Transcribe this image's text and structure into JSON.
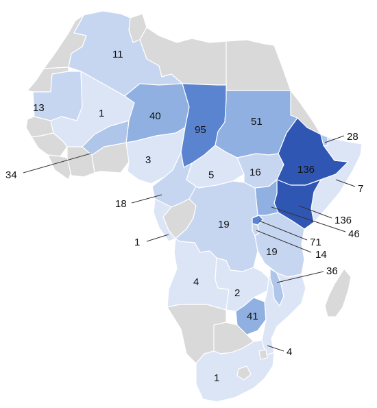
{
  "palette": {
    "no_data": "#d9d9d9",
    "scale": [
      "#dbe5f6",
      "#c7d6f0",
      "#afc5ea",
      "#8fb0e0",
      "#5a84cf",
      "#3056b3"
    ]
  },
  "regions": [
    {
      "id": "algeria",
      "value": 11,
      "level": 1
    },
    {
      "id": "mauritania",
      "value": 13,
      "level": 1
    },
    {
      "id": "mali",
      "value": 1,
      "level": 0
    },
    {
      "id": "niger",
      "value": 40,
      "level": 3
    },
    {
      "id": "chad",
      "value": 95,
      "level": 4
    },
    {
      "id": "sudan",
      "value": 51,
      "level": 3
    },
    {
      "id": "burkina-faso",
      "value": 34,
      "level": 2
    },
    {
      "id": "nigeria",
      "value": 3,
      "level": 0
    },
    {
      "id": "cameroon",
      "value": 18,
      "level": 1
    },
    {
      "id": "car",
      "value": 5,
      "level": 0
    },
    {
      "id": "south-sudan",
      "value": 16,
      "level": 1
    },
    {
      "id": "ethiopia",
      "value": 136,
      "level": 5
    },
    {
      "id": "djibouti",
      "value": 28,
      "level": 2
    },
    {
      "id": "somalia",
      "value": 7,
      "level": 0
    },
    {
      "id": "kenya",
      "value": 136,
      "level": 5
    },
    {
      "id": "uganda",
      "value": 46,
      "level": 3
    },
    {
      "id": "rwanda",
      "value": 71,
      "level": 4
    },
    {
      "id": "burundi",
      "value": 14,
      "level": 1
    },
    {
      "id": "drc",
      "value": 19,
      "level": 1
    },
    {
      "id": "gabon",
      "value": 1,
      "level": 0
    },
    {
      "id": "tanzania",
      "value": 19,
      "level": 1
    },
    {
      "id": "angola",
      "value": 4,
      "level": 0
    },
    {
      "id": "zambia",
      "value": 2,
      "level": 0
    },
    {
      "id": "malawi",
      "value": 36,
      "level": 2
    },
    {
      "id": "zimbabwe",
      "value": 41,
      "level": 3
    },
    {
      "id": "mozambique",
      "value": 4,
      "level": 0
    },
    {
      "id": "south-africa",
      "value": 1,
      "level": 0
    }
  ]
}
